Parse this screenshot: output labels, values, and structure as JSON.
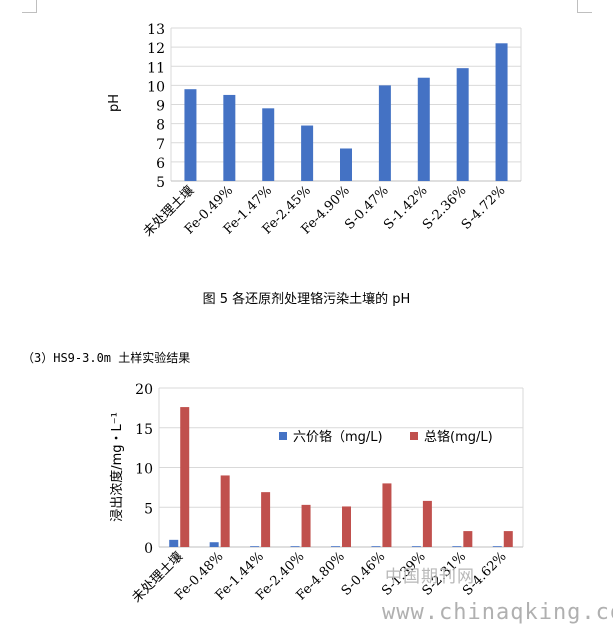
{
  "caption": "图 5 各还原剂处理铬污染土壤的 pH",
  "section_title": "（3）HS9-3.0m 土样实验结果",
  "watermark": {
    "cn": "中国期刊网",
    "url": "www.chinaqking.com"
  },
  "colors": {
    "blue": "#4472c4",
    "red": "#c0504d",
    "grid": "#d9d9d9",
    "axis": "#000000"
  },
  "chart_data": [
    {
      "type": "bar",
      "title": "",
      "xlabel": "",
      "ylabel": "pH",
      "ylim": [
        5,
        13
      ],
      "yticks": [
        "5",
        "6",
        "7",
        "8",
        "9",
        "10",
        "11",
        "12",
        "13"
      ],
      "categories": [
        "未处理土壤",
        "Fe-0.49%",
        "Fe-1.47%",
        "Fe-2.45%",
        "Fe-4.90%",
        "S-0.47%",
        "S-1.42%",
        "S-2.36%",
        "S-4.72%"
      ],
      "values": [
        9.8,
        9.5,
        8.8,
        7.9,
        6.7,
        10.0,
        10.4,
        10.9,
        12.2
      ],
      "grid": true
    },
    {
      "type": "bar",
      "title": "",
      "xlabel": "",
      "ylabel": "浸出浓度/mg・L⁻¹",
      "ylim": [
        0,
        20
      ],
      "yticks": [
        "0",
        "5",
        "10",
        "15",
        "20"
      ],
      "categories": [
        "未处理土壤",
        "Fe-0.48%",
        "Fe-1.44%",
        "Fe-2.40%",
        "Fe-4.80%",
        "S-0.46%",
        "S-1.39%",
        "S-2.31%",
        "S-4.62%"
      ],
      "series": [
        {
          "name": "六价铬（mg/L)",
          "values": [
            0.9,
            0.6,
            0.1,
            0.1,
            0.1,
            0.1,
            0.1,
            0.1,
            0.1
          ]
        },
        {
          "name": "总铬(mg/L)",
          "values": [
            17.6,
            9.0,
            6.9,
            5.3,
            5.1,
            8.0,
            5.8,
            2.0,
            2.0
          ]
        }
      ],
      "legend": "top-right",
      "grid": true
    }
  ]
}
